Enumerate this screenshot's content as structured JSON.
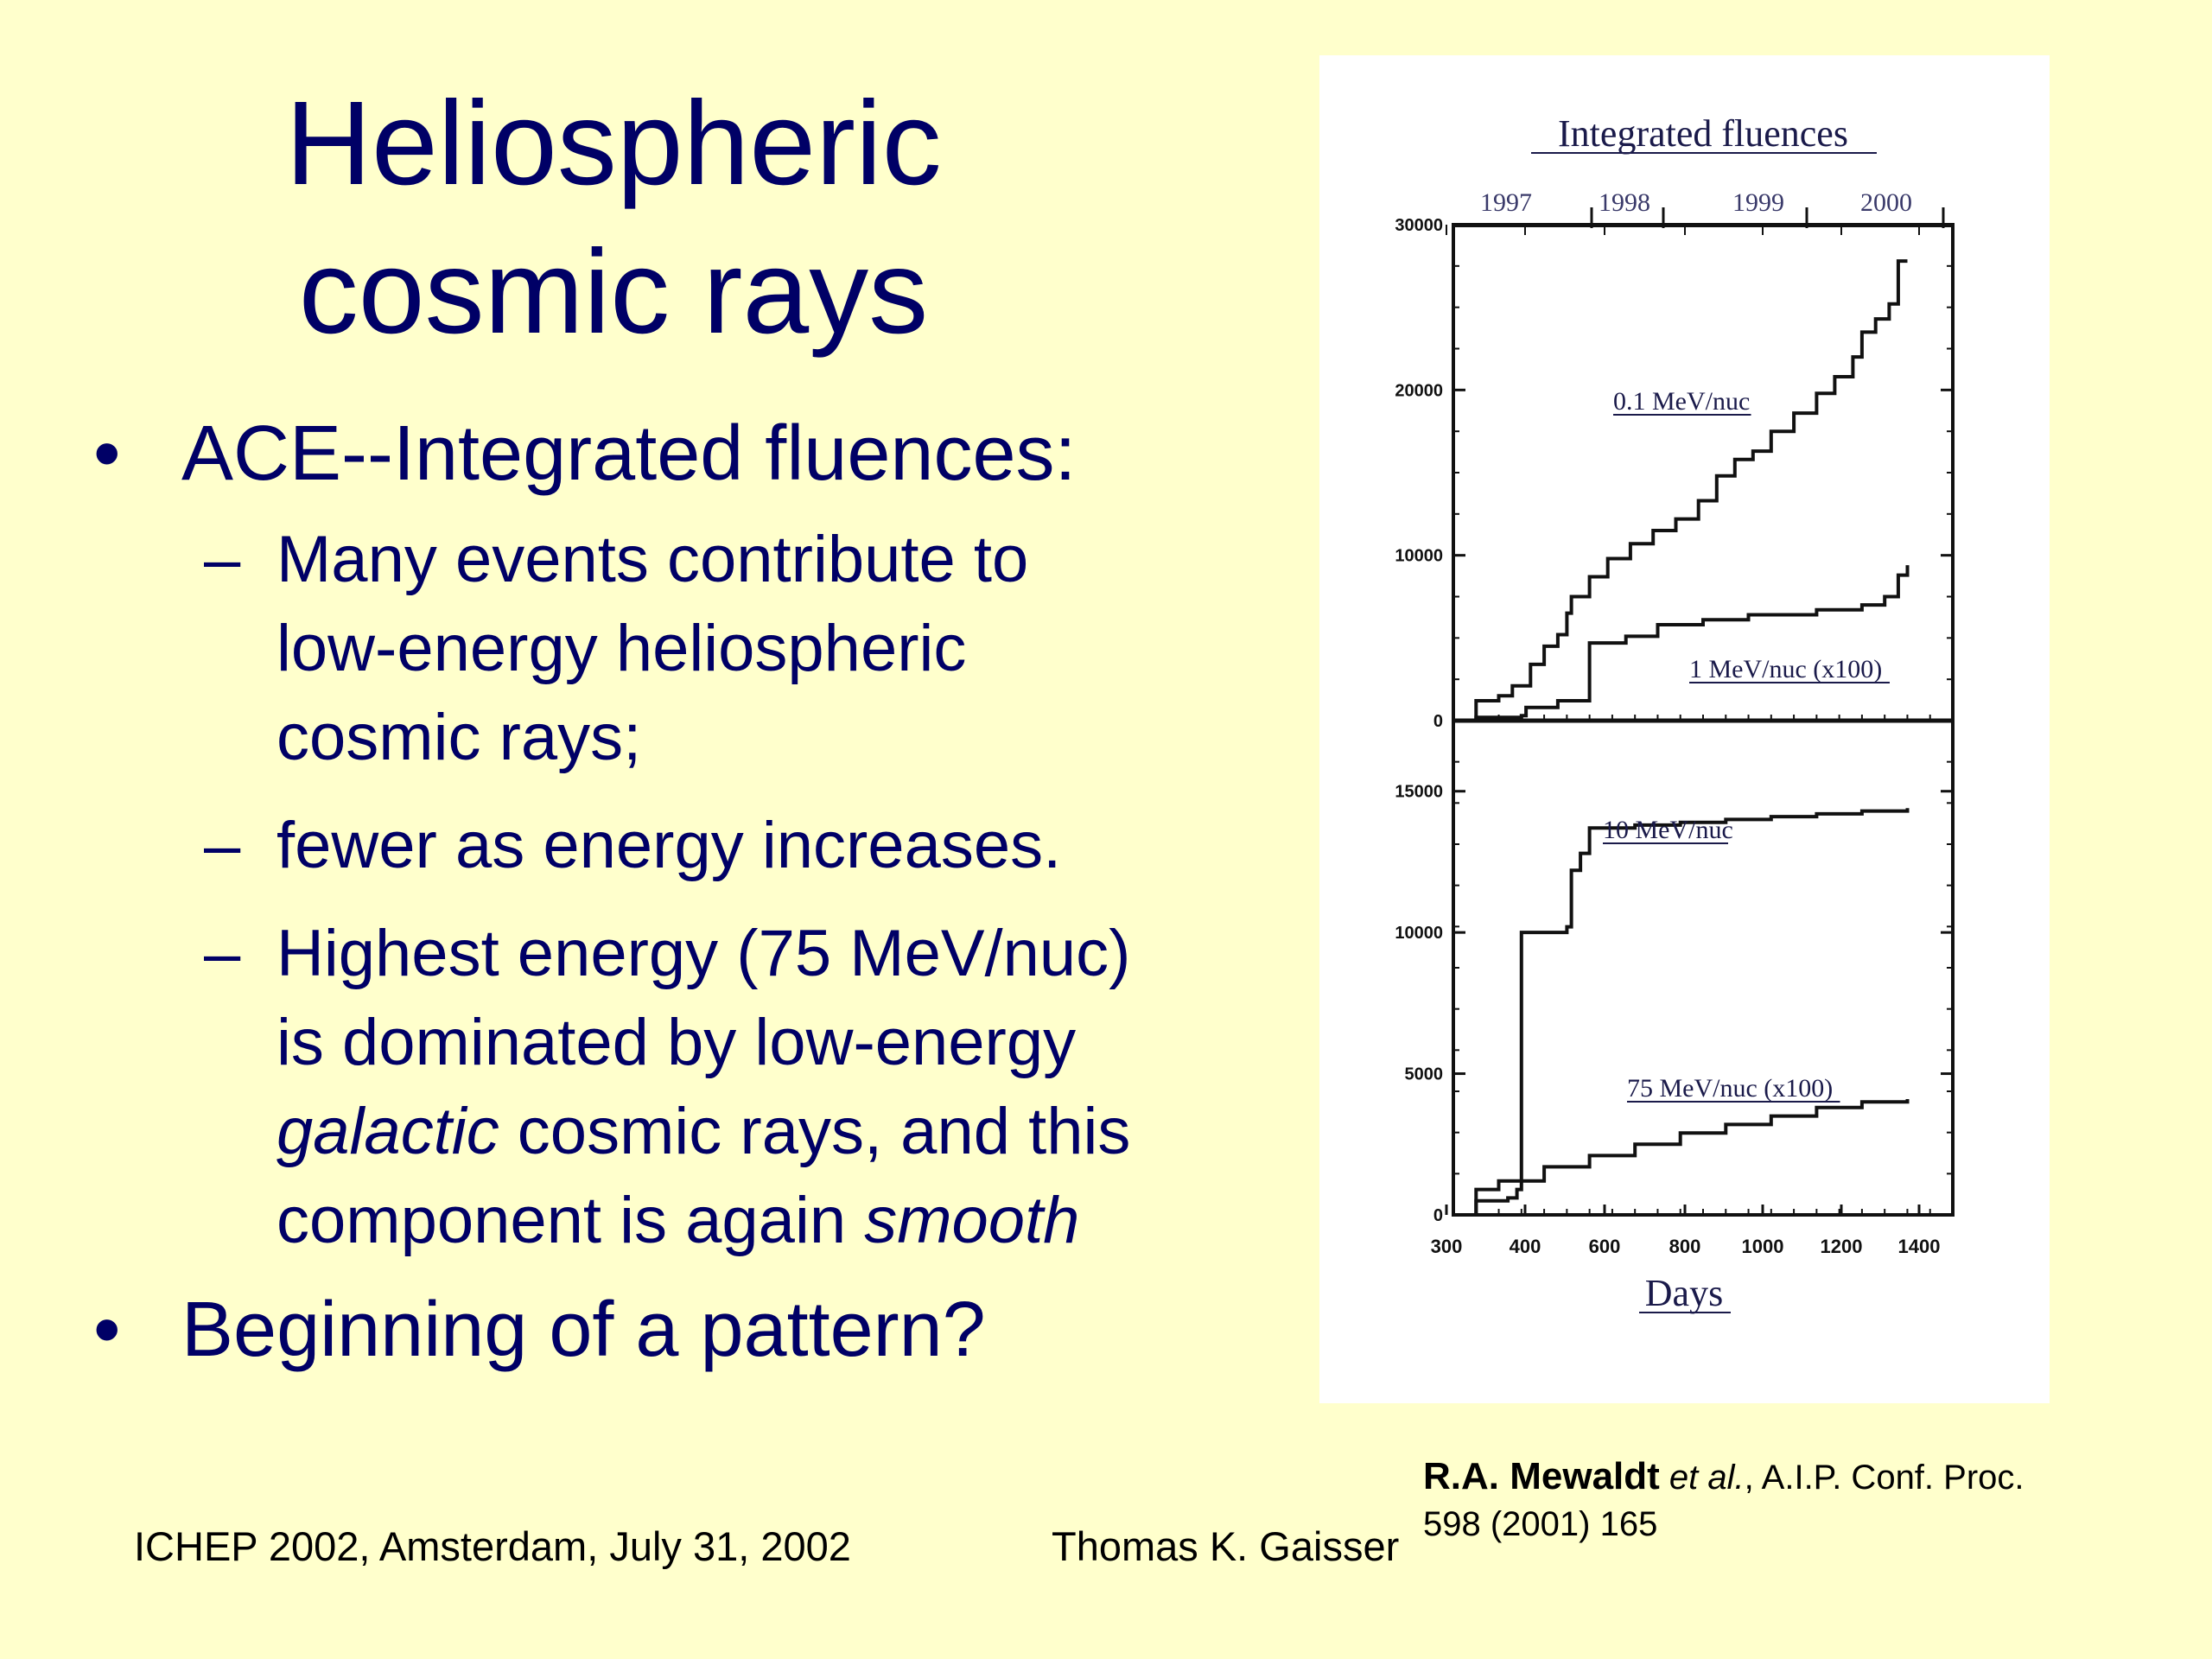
{
  "slide": {
    "title_line1": "Heliospheric",
    "title_line2": "cosmic rays",
    "bullet1": "ACE--Integrated fluences:",
    "sub1_lines": [
      "Many events contribute to",
      "low-energy heliospheric",
      "cosmic rays;"
    ],
    "sub2": "fewer as energy increases.",
    "sub3_line1": "Highest energy (75 MeV/nuc)",
    "sub3_line2": "is dominated by low-energy",
    "sub3_line3_italic": "galactic",
    "sub3_line3_rest": " cosmic rays, and this",
    "sub3_line4_rest": "component is again ",
    "sub3_line4_italic": "smooth",
    "bullet2": "Beginning of a pattern?",
    "bullet_symbol": "•",
    "dash_symbol": "–"
  },
  "footer": {
    "left": "ICHEP 2002, Amsterdam, July 31, 2002",
    "middle": "Thomas K. Gaisser"
  },
  "citation": {
    "author": "R.A. Mewaldt",
    "etal": "et al.",
    "rest_line1": ", A.I.P. Conf. Proc.",
    "line2": "598 (2001) 165"
  },
  "chart_data": {
    "type": "line",
    "title": "Integrated fluences",
    "xlabel": "Days",
    "xlim": [
      300,
      1400
    ],
    "x_ticks": [
      "300",
      "400",
      "600",
      "800",
      "1000",
      "1200",
      "1400"
    ],
    "year_labels": [
      "1997",
      "1998",
      "1999",
      "2000"
    ],
    "panels": [
      {
        "name": "upper",
        "ylim": [
          0,
          30000
        ],
        "y_ticks": [
          "30000",
          "20000",
          "10000",
          "0"
        ],
        "series": [
          {
            "name": "0.1 MeV/nuc",
            "x": [
              300,
              350,
              400,
              430,
              470,
              500,
              530,
              550,
              560,
              600,
              640,
              690,
              740,
              790,
              840,
              880,
              920,
              960,
              1000,
              1050,
              1100,
              1140,
              1180,
              1200,
              1230,
              1260,
              1280,
              1300
            ],
            "y": [
              0,
              1200,
              1500,
              2100,
              3400,
              4500,
              5200,
              6500,
              7500,
              8700,
              9800,
              10700,
              11500,
              12200,
              13300,
              14800,
              15800,
              16300,
              17500,
              18600,
              19800,
              20800,
              22000,
              23500,
              24300,
              25200,
              27800,
              27800
            ]
          },
          {
            "name": "1 MeV/nuc (x100)",
            "x": [
              300,
              350,
              450,
              460,
              530,
              600,
              680,
              750,
              850,
              950,
              1100,
              1200,
              1250,
              1280,
              1300
            ],
            "y": [
              0,
              200,
              300,
              800,
              1200,
              4700,
              5100,
              5800,
              6100,
              6400,
              6700,
              7000,
              7500,
              8800,
              9400
            ]
          }
        ]
      },
      {
        "name": "lower",
        "ylim": [
          0,
          17500
        ],
        "y_ticks": [
          "15000",
          "10000",
          "5000",
          "0"
        ],
        "series": [
          {
            "name": "10 MeV/nuc",
            "x": [
              300,
              350,
              420,
              440,
              450,
              550,
              560,
              580,
              600,
              700,
              800,
              900,
              1000,
              1100,
              1200,
              1300
            ],
            "y": [
              0,
              500,
              600,
              900,
              10000,
              10200,
              12200,
              12800,
              13700,
              13800,
              13900,
              14000,
              14100,
              14200,
              14300,
              14400
            ]
          },
          {
            "name": "75 MeV/nuc (x100)",
            "x": [
              300,
              350,
              400,
              500,
              600,
              700,
              800,
              900,
              1000,
              1100,
              1200,
              1300
            ],
            "y": [
              0,
              900,
              1200,
              1700,
              2100,
              2500,
              2900,
              3200,
              3500,
              3800,
              4000,
              4100
            ]
          }
        ]
      }
    ],
    "grid": false,
    "legend": "inline labels"
  }
}
